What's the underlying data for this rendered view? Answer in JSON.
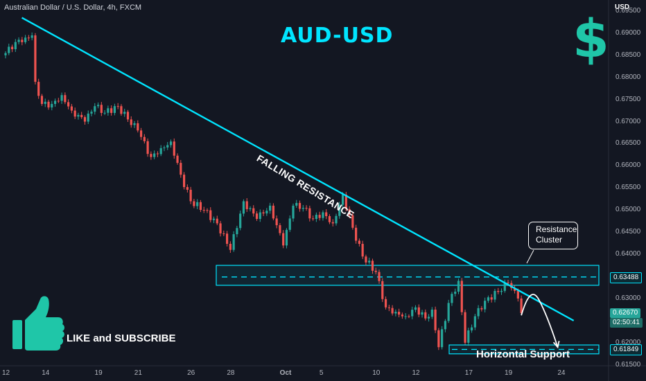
{
  "header": {
    "symbol": "Australian Dollar / U.S. Dollar, 4h, FXCM"
  },
  "annotations": {
    "title": "AUD-USD",
    "dollar_sign": "$",
    "falling_resistance": "FALLING RESISTANCE",
    "resistance_cluster": "Resistance\nCluster",
    "horizontal_support": "Horizontal Support",
    "like_subscribe": "LIKE and SUBSCRIBE"
  },
  "colors": {
    "background": "#131722",
    "bull": "#26a69a",
    "bear": "#ef5350",
    "trendline": "#00e5ff",
    "zone_border": "#00e5ff",
    "thumb": "#1fc6a8"
  },
  "icons": [
    "thumbs-up-icon",
    "dollar-sign-icon"
  ],
  "price_tags": {
    "resistance_level": "0.63488",
    "current_price": "0.62670",
    "countdown": "02:50:41",
    "support_level": "0.61849"
  },
  "chart_data": {
    "type": "candlestick",
    "ylabel": "USD",
    "y_ticks": [
      0.695,
      0.69,
      0.685,
      0.68,
      0.675,
      0.67,
      0.665,
      0.66,
      0.655,
      0.65,
      0.645,
      0.64,
      0.635,
      0.63,
      0.625,
      0.62,
      0.615
    ],
    "y_tick_labels": [
      "0.69500",
      "0.69000",
      "0.68500",
      "0.68000",
      "0.67500",
      "0.67000",
      "0.66500",
      "0.66000",
      "0.65500",
      "0.65000",
      "0.64500",
      "0.64000",
      "0.63500",
      "0.63000",
      "0.62500",
      "0.62000",
      "0.61500"
    ],
    "ylim": [
      0.6148,
      0.6975
    ],
    "x_labels": [
      "12",
      "14",
      "19",
      "21",
      "26",
      "28",
      "Oct",
      "5",
      "10",
      "12",
      "17",
      "19",
      "24"
    ],
    "x_label_index": [
      0,
      12,
      28,
      40,
      56,
      68,
      84,
      96,
      112,
      124,
      140,
      152,
      168
    ],
    "num_bars": 172,
    "waypoints": [
      [
        0,
        0.6855
      ],
      [
        3,
        0.688
      ],
      [
        6,
        0.689
      ],
      [
        8,
        0.6895
      ],
      [
        9,
        0.679
      ],
      [
        11,
        0.674
      ],
      [
        14,
        0.674
      ],
      [
        17,
        0.676
      ],
      [
        20,
        0.6725
      ],
      [
        24,
        0.67
      ],
      [
        27,
        0.6735
      ],
      [
        30,
        0.672
      ],
      [
        34,
        0.6735
      ],
      [
        37,
        0.6705
      ],
      [
        40,
        0.668
      ],
      [
        44,
        0.662
      ],
      [
        47,
        0.664
      ],
      [
        50,
        0.6655
      ],
      [
        53,
        0.658
      ],
      [
        56,
        0.652
      ],
      [
        60,
        0.65
      ],
      [
        64,
        0.647
      ],
      [
        68,
        0.641
      ],
      [
        72,
        0.652
      ],
      [
        76,
        0.648
      ],
      [
        80,
        0.651
      ],
      [
        84,
        0.642
      ],
      [
        87,
        0.651
      ],
      [
        90,
        0.6505
      ],
      [
        93,
        0.648
      ],
      [
        96,
        0.6495
      ],
      [
        99,
        0.647
      ],
      [
        102,
        0.6535
      ],
      [
        105,
        0.646
      ],
      [
        108,
        0.6395
      ],
      [
        112,
        0.636
      ],
      [
        115,
        0.628
      ],
      [
        118,
        0.627
      ],
      [
        121,
        0.626
      ],
      [
        124,
        0.628
      ],
      [
        127,
        0.6255
      ],
      [
        129,
        0.6275
      ],
      [
        131,
        0.619
      ],
      [
        134,
        0.629
      ],
      [
        137,
        0.634
      ],
      [
        139,
        0.62
      ],
      [
        142,
        0.626
      ],
      [
        145,
        0.6295
      ],
      [
        149,
        0.6315
      ],
      [
        152,
        0.6335
      ],
      [
        155,
        0.63
      ],
      [
        156,
        0.6267
      ]
    ],
    "trendline": {
      "start": [
        2,
        0.6935
      ],
      "end": [
        171,
        0.625
      ]
    },
    "resistance_zone": {
      "top": 0.6375,
      "bottom": 0.633,
      "level": 0.63488
    },
    "support_zone": {
      "top": 0.6195,
      "bottom": 0.6175,
      "level": 0.61849
    },
    "projection": {
      "from": [
        156,
        0.6262
      ],
      "peak": [
        160,
        0.6298
      ],
      "to": [
        167,
        0.619
      ]
    },
    "current_price": 0.6267
  }
}
